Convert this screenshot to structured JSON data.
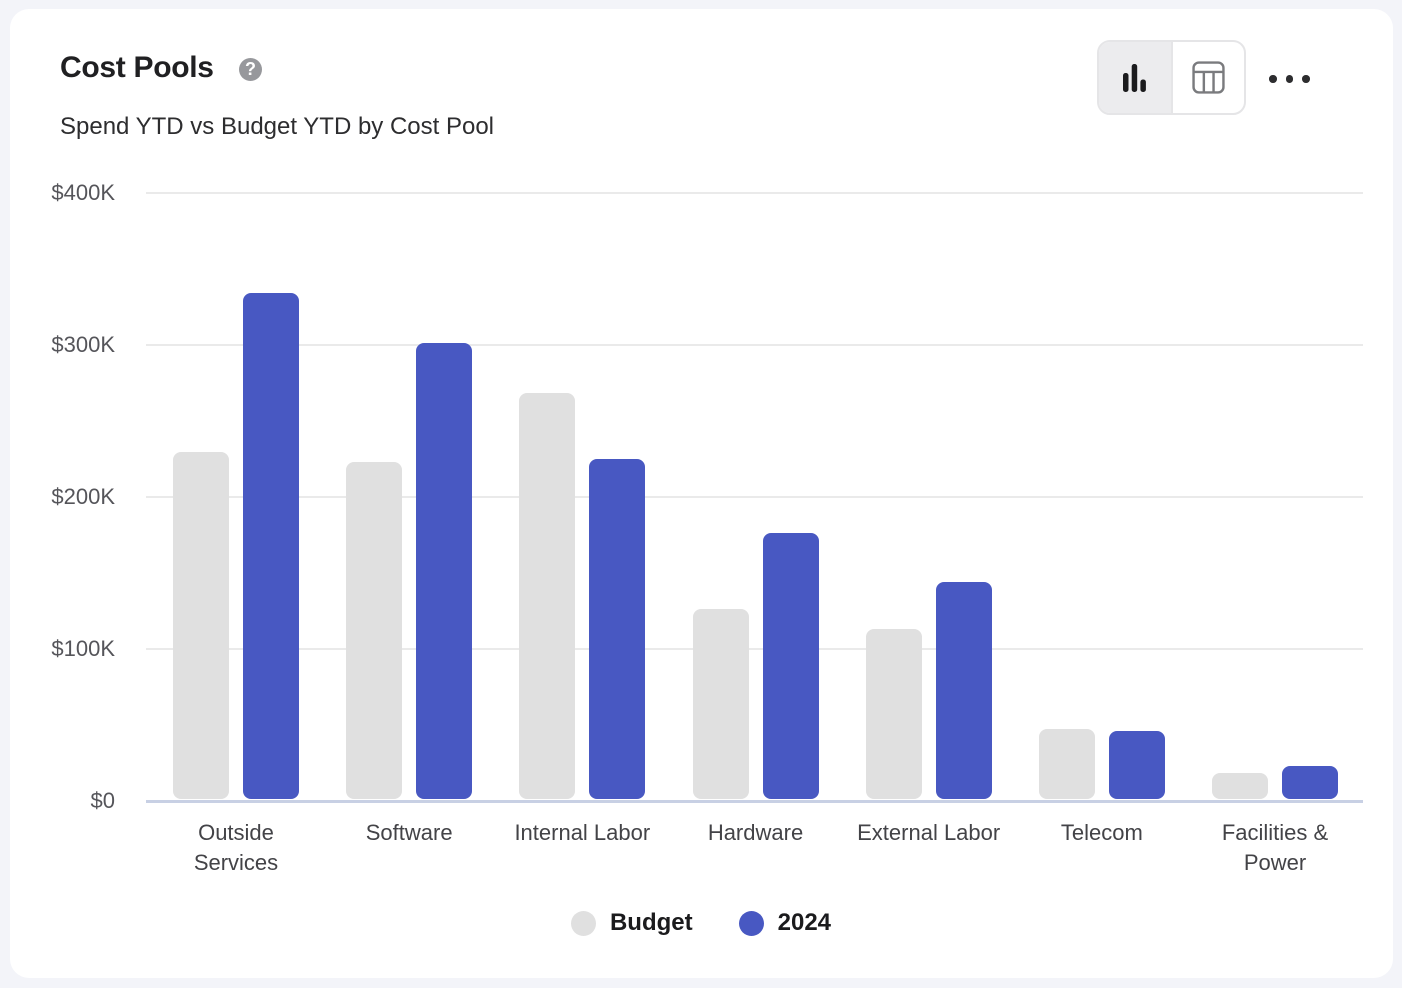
{
  "header": {
    "title": "Cost Pools",
    "subtitle": "Spend YTD vs Budget YTD by Cost Pool",
    "help_glyph": "?"
  },
  "toolbar": {
    "views": [
      {
        "name": "bar-chart",
        "active": true
      },
      {
        "name": "table",
        "active": false
      }
    ],
    "more_button": "ellipsis"
  },
  "chart_data": {
    "type": "bar",
    "title": "Cost Pools",
    "subtitle": "Spend YTD vs Budget YTD by Cost Pool",
    "categories": [
      "Outside Services",
      "Software",
      "Internal Labor",
      "Hardware",
      "External Labor",
      "Telecom",
      "Facilities & Power"
    ],
    "series": [
      {
        "name": "Budget",
        "color": "#e0e0e0",
        "values": [
          228000,
          222000,
          267000,
          125000,
          112000,
          46000,
          17000
        ]
      },
      {
        "name": "2024",
        "color": "#4858c2",
        "values": [
          333000,
          300000,
          224000,
          175000,
          143000,
          45000,
          22000
        ]
      }
    ],
    "ylim": [
      0,
      400000
    ],
    "yticks": [
      {
        "value": 0,
        "label": "$0"
      },
      {
        "value": 100000,
        "label": "$100K"
      },
      {
        "value": 200000,
        "label": "$200K"
      },
      {
        "value": 300000,
        "label": "$300K"
      },
      {
        "value": 400000,
        "label": "$400K"
      }
    ],
    "grid": "horizontal",
    "legend_position": "bottom"
  }
}
